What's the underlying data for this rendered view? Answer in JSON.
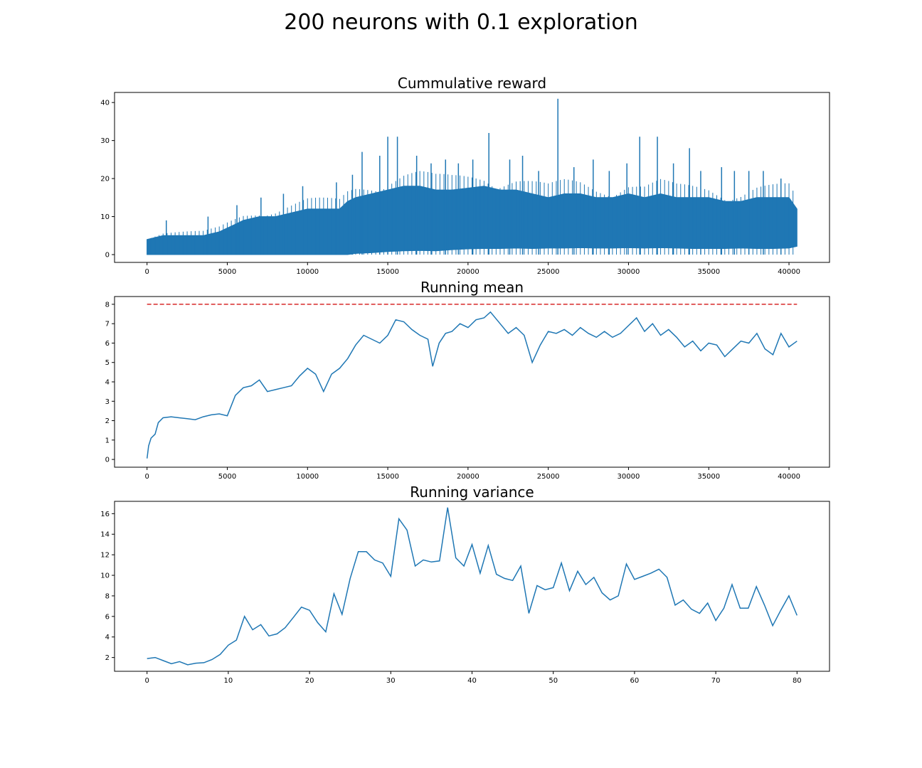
{
  "figure": {
    "title": "200 neurons with 0.1 exploration"
  },
  "colors": {
    "series": "#1f77b4",
    "reference": "#d62728",
    "axes": "#000000",
    "background": "#ffffff"
  },
  "chart_data": [
    {
      "type": "area",
      "title": "Cummulative reward",
      "xlabel": "",
      "ylabel": "",
      "xlim": [
        -2025,
        42525
      ],
      "ylim": [
        -2.05,
        42.65
      ],
      "xticks": [
        0,
        5000,
        10000,
        15000,
        20000,
        25000,
        30000,
        35000,
        40000
      ],
      "yticks": [
        0,
        10,
        20,
        30,
        40
      ],
      "grid": false,
      "series": [
        {
          "x": [
            0,
            500,
            1000,
            2000,
            3000,
            3500,
            4000,
            4500,
            5000,
            5500,
            6000,
            7000,
            8000,
            9000,
            10000,
            11000,
            12000,
            12500,
            13000,
            14000,
            15000,
            16000,
            17000,
            18000,
            19000,
            20000,
            21000,
            22000,
            23000,
            24000,
            25000,
            26000,
            27000,
            28000,
            29000,
            30000,
            31000,
            32000,
            33000,
            34000,
            35000,
            36000,
            37000,
            38000,
            39000,
            40000,
            40500
          ],
          "low": [
            0,
            0,
            0,
            0,
            0,
            0,
            0,
            0,
            0,
            0,
            0,
            0,
            0,
            0,
            0,
            0,
            0,
            0,
            0.3,
            0.5,
            0.8,
            1,
            1.1,
            1,
            1.3,
            1.5,
            1.6,
            1.6,
            1.7,
            1.6,
            1.7,
            1.7,
            1.8,
            1.7,
            1.7,
            1.8,
            1.7,
            1.8,
            1.7,
            1.6,
            1.6,
            1.6,
            1.7,
            1.6,
            1.6,
            1.7,
            2.2
          ],
          "high": [
            4,
            4.5,
            5,
            5,
            5,
            5,
            5.5,
            6,
            7,
            8,
            9,
            10,
            10,
            11,
            12,
            12,
            12,
            14,
            15,
            16,
            17,
            18,
            18,
            17,
            17,
            17.5,
            18,
            17,
            17,
            16,
            15,
            16,
            16,
            15,
            15,
            16,
            15,
            16,
            15,
            15,
            15,
            14,
            14,
            15,
            15,
            15,
            12
          ],
          "spikes": [
            {
              "x": 1200,
              "y": 9
            },
            {
              "x": 3800,
              "y": 10
            },
            {
              "x": 5600,
              "y": 13
            },
            {
              "x": 7100,
              "y": 15
            },
            {
              "x": 8500,
              "y": 16
            },
            {
              "x": 9700,
              "y": 18
            },
            {
              "x": 11800,
              "y": 19
            },
            {
              "x": 12800,
              "y": 21
            },
            {
              "x": 13400,
              "y": 27
            },
            {
              "x": 14500,
              "y": 26
            },
            {
              "x": 15000,
              "y": 31
            },
            {
              "x": 15600,
              "y": 31
            },
            {
              "x": 16800,
              "y": 26
            },
            {
              "x": 17700,
              "y": 24
            },
            {
              "x": 18600,
              "y": 25
            },
            {
              "x": 19400,
              "y": 24
            },
            {
              "x": 20300,
              "y": 25
            },
            {
              "x": 21300,
              "y": 32
            },
            {
              "x": 22600,
              "y": 25
            },
            {
              "x": 23400,
              "y": 26
            },
            {
              "x": 24400,
              "y": 22
            },
            {
              "x": 25600,
              "y": 41
            },
            {
              "x": 26600,
              "y": 23
            },
            {
              "x": 27800,
              "y": 25
            },
            {
              "x": 28800,
              "y": 22
            },
            {
              "x": 29900,
              "y": 24
            },
            {
              "x": 30700,
              "y": 31
            },
            {
              "x": 31800,
              "y": 31
            },
            {
              "x": 32800,
              "y": 24
            },
            {
              "x": 33800,
              "y": 28
            },
            {
              "x": 34500,
              "y": 22
            },
            {
              "x": 35800,
              "y": 23
            },
            {
              "x": 36600,
              "y": 22
            },
            {
              "x": 37500,
              "y": 22
            },
            {
              "x": 38400,
              "y": 22
            },
            {
              "x": 39500,
              "y": 20
            }
          ]
        }
      ]
    },
    {
      "type": "line",
      "title": "Running mean",
      "xlabel": "",
      "ylabel": "",
      "xlim": [
        -2025,
        42525
      ],
      "ylim": [
        -0.4,
        8.4
      ],
      "xticks": [
        0,
        5000,
        10000,
        15000,
        20000,
        25000,
        30000,
        35000,
        40000
      ],
      "yticks": [
        0,
        1,
        2,
        3,
        4,
        5,
        6,
        7,
        8
      ],
      "grid": false,
      "series": [
        {
          "x": [
            0,
            100,
            250,
            500,
            700,
            1000,
            1500,
            2000,
            2500,
            3000,
            3500,
            4000,
            4500,
            5000,
            5500,
            6000,
            6500,
            7000,
            7500,
            8000,
            8500,
            9000,
            9500,
            10000,
            10500,
            11000,
            11500,
            12000,
            12500,
            13000,
            13500,
            14000,
            14500,
            15000,
            15500,
            16000,
            16500,
            17000,
            17500,
            17800,
            18200,
            18600,
            19000,
            19500,
            20000,
            20500,
            21000,
            21400,
            22000,
            22500,
            23000,
            23500,
            24000,
            24500,
            25000,
            25500,
            26000,
            26500,
            27000,
            27500,
            28000,
            28500,
            29000,
            29500,
            30000,
            30500,
            31000,
            31500,
            32000,
            32500,
            33000,
            33500,
            34000,
            34500,
            35000,
            35500,
            36000,
            36500,
            37000,
            37500,
            38000,
            38500,
            39000,
            39500,
            40000,
            40500
          ],
          "y": [
            0.05,
            0.7,
            1.1,
            1.3,
            1.9,
            2.15,
            2.2,
            2.15,
            2.1,
            2.05,
            2.2,
            2.3,
            2.35,
            2.25,
            3.3,
            3.7,
            3.8,
            4.1,
            3.5,
            3.6,
            3.7,
            3.8,
            4.3,
            4.7,
            4.4,
            3.5,
            4.4,
            4.7,
            5.2,
            5.9,
            6.4,
            6.2,
            6.0,
            6.4,
            7.2,
            7.1,
            6.7,
            6.4,
            6.2,
            4.8,
            6.0,
            6.5,
            6.6,
            7.0,
            6.8,
            7.2,
            7.3,
            7.6,
            7.0,
            6.5,
            6.8,
            6.4,
            5.0,
            5.9,
            6.6,
            6.5,
            6.7,
            6.4,
            6.8,
            6.5,
            6.3,
            6.6,
            6.3,
            6.5,
            6.9,
            7.3,
            6.6,
            7.0,
            6.4,
            6.7,
            6.3,
            5.8,
            6.1,
            5.6,
            6.0,
            5.9,
            5.3,
            5.7,
            6.1,
            6.0,
            6.5,
            5.7,
            5.4,
            6.5,
            5.8,
            6.1
          ]
        }
      ],
      "reference_line": {
        "y": 8,
        "x": [
          0,
          40500
        ],
        "style": "dashed"
      }
    },
    {
      "type": "line",
      "title": "Running variance",
      "xlabel": "",
      "ylabel": "",
      "xlim": [
        -4,
        84
      ],
      "ylim": [
        0.66,
        17.2
      ],
      "xticks": [
        0,
        10,
        20,
        30,
        40,
        50,
        60,
        70,
        80
      ],
      "yticks": [
        2,
        4,
        6,
        8,
        10,
        12,
        14,
        16
      ],
      "grid": false,
      "series": [
        {
          "x": [
            0,
            1,
            2,
            3,
            4,
            5,
            6,
            7,
            8,
            9,
            10,
            11,
            12,
            13,
            14,
            15,
            16,
            17,
            18,
            19,
            20,
            21,
            22,
            23,
            24,
            25,
            26,
            27,
            28,
            29,
            30,
            31,
            32,
            33,
            34,
            35,
            36,
            37,
            38,
            39,
            40,
            41,
            42,
            43,
            44,
            45,
            46,
            47,
            48,
            49,
            50,
            51,
            52,
            53,
            54,
            55,
            56,
            57,
            58,
            59,
            60,
            61,
            62,
            63,
            64,
            65,
            66,
            67,
            68,
            69,
            70,
            71,
            72,
            73,
            74,
            75,
            76,
            77,
            78,
            79,
            80
          ],
          "y": [
            1.9,
            2.0,
            1.7,
            1.4,
            1.6,
            1.3,
            1.45,
            1.5,
            1.8,
            2.3,
            3.2,
            3.7,
            6.0,
            4.7,
            5.2,
            4.1,
            4.3,
            4.9,
            5.9,
            6.9,
            6.6,
            5.4,
            4.5,
            8.2,
            6.2,
            9.7,
            12.3,
            12.3,
            11.5,
            11.2,
            9.9,
            15.5,
            14.4,
            10.9,
            11.5,
            11.3,
            11.4,
            16.6,
            11.7,
            10.9,
            13.0,
            10.2,
            12.9,
            10.1,
            9.7,
            9.5,
            10.9,
            6.3,
            9.0,
            8.6,
            8.8,
            11.2,
            8.5,
            10.4,
            9.1,
            9.8,
            8.3,
            7.6,
            8.0,
            11.1,
            9.6,
            9.9,
            10.2,
            10.6,
            9.8,
            7.1,
            7.6,
            6.7,
            6.3,
            7.3,
            5.6,
            6.8,
            9.1,
            6.8,
            6.8,
            8.9,
            7.1,
            5.1,
            6.6,
            8.0,
            6.1
          ]
        }
      ]
    }
  ]
}
